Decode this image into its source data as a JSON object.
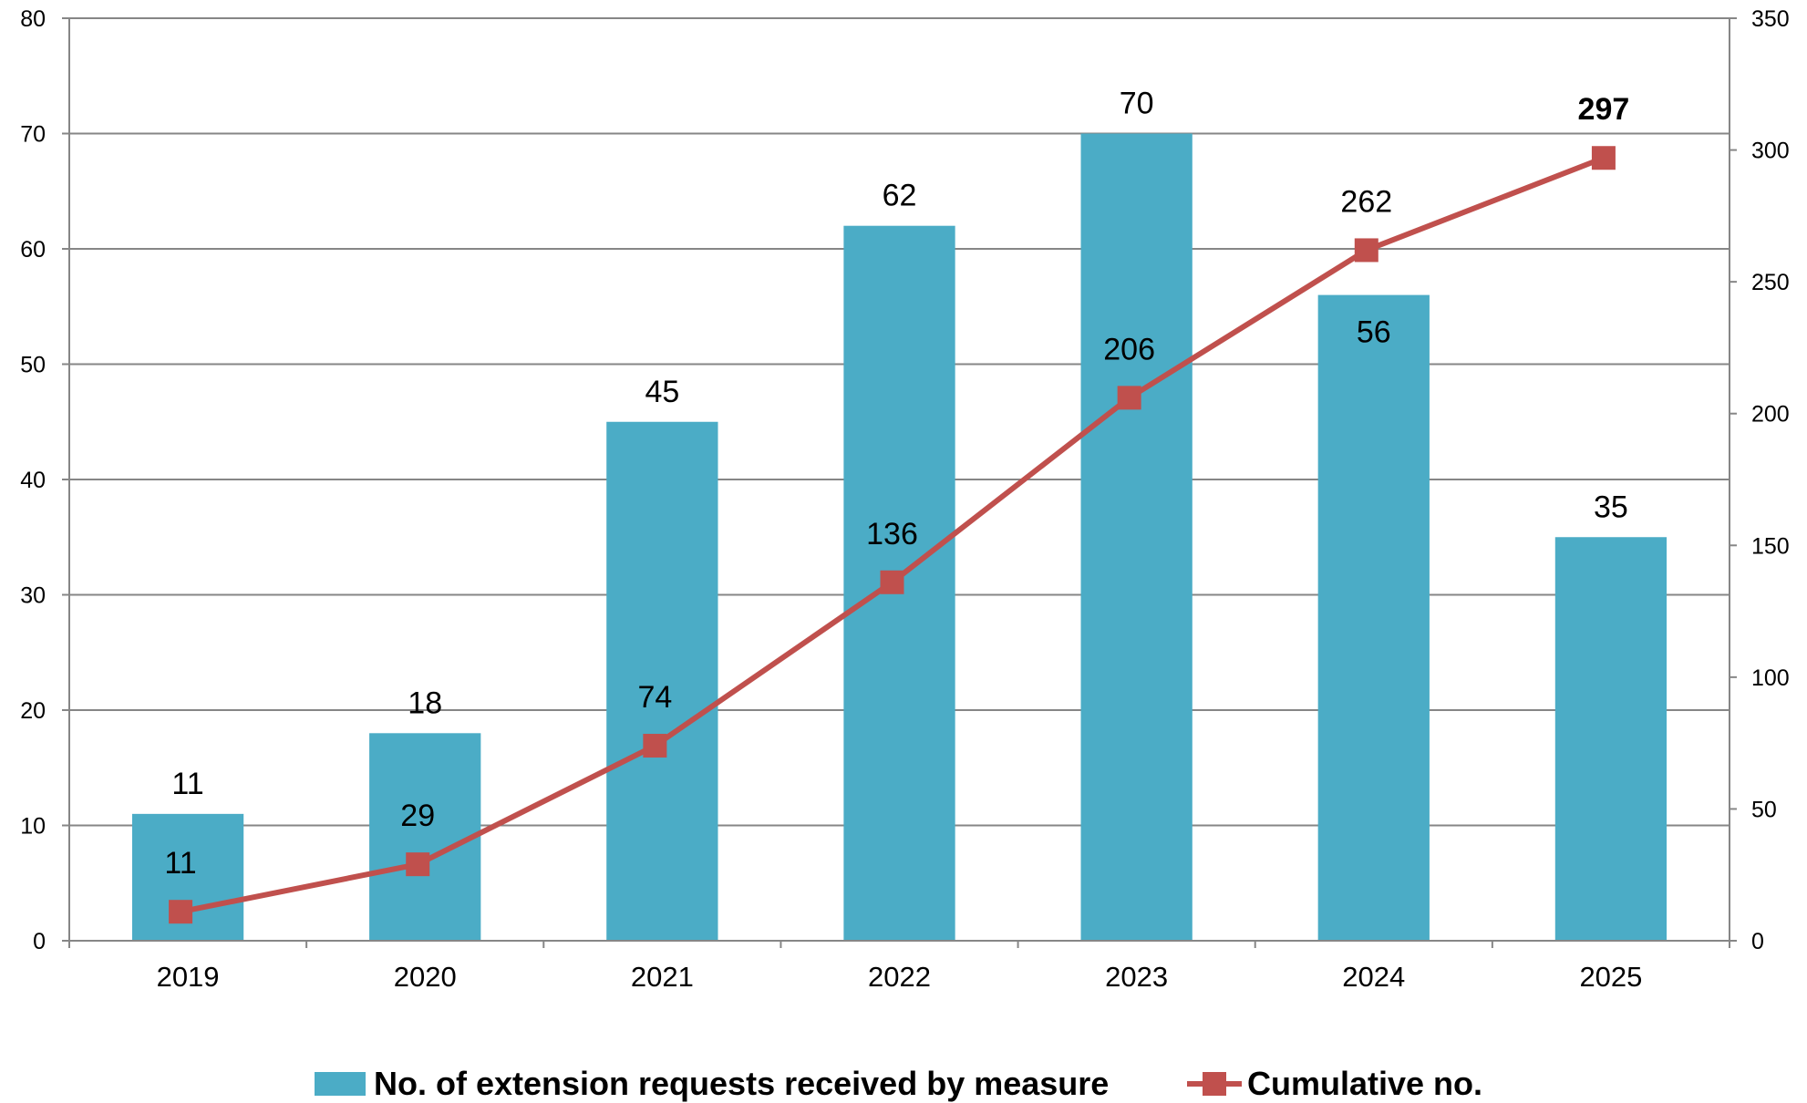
{
  "chart_data": {
    "type": "bar",
    "categories": [
      "2019",
      "2020",
      "2021",
      "2022",
      "2023",
      "2024",
      "2025"
    ],
    "series": [
      {
        "name": "No. of extension requests received by measure",
        "type": "bar",
        "axis": "left",
        "color": "#4bacc6",
        "values": [
          11,
          18,
          45,
          62,
          70,
          56,
          35
        ]
      },
      {
        "name": "Cumulative no.",
        "type": "line",
        "axis": "right",
        "color": "#c0504d",
        "marker": "square",
        "values": [
          11,
          29,
          74,
          136,
          206,
          262,
          297
        ]
      }
    ],
    "y_left": {
      "min": 0,
      "max": 80,
      "step": 10,
      "ticks": [
        "0",
        "10",
        "20",
        "30",
        "40",
        "50",
        "60",
        "70",
        "80"
      ]
    },
    "y_right": {
      "min": 0,
      "max": 350,
      "step": 50,
      "ticks": [
        "0",
        "50",
        "100",
        "150",
        "200",
        "250",
        "300",
        "350"
      ]
    },
    "grid": true,
    "legend_position": "bottom",
    "title": "",
    "xlabel": "",
    "ylabel": "",
    "highlight_last_cumulative_label_bold": true
  }
}
